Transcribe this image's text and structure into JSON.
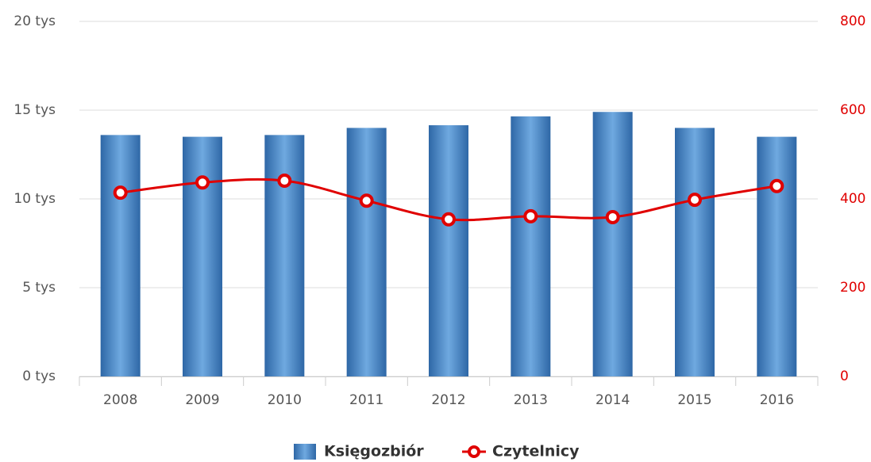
{
  "chart_data": {
    "type": "bar-line",
    "categories": [
      "2008",
      "2009",
      "2010",
      "2011",
      "2012",
      "2013",
      "2014",
      "2015",
      "2016"
    ],
    "series": [
      {
        "name": "Księgozbiór",
        "type": "bar",
        "color": "#3f7cbf",
        "values": [
          13600,
          13500,
          13600,
          14000,
          14150,
          14650,
          14900,
          14000,
          13500
        ]
      },
      {
        "name": "Czytelnicy",
        "type": "line",
        "axis": "y2",
        "color": "#e00000",
        "values": [
          414,
          437,
          441,
          396,
          354,
          361,
          359,
          398,
          429
        ]
      }
    ],
    "ylim": [
      0,
      20000
    ],
    "yticks": [
      {
        "value": 0,
        "label": "0 tys"
      },
      {
        "value": 5000,
        "label": "5 tys"
      },
      {
        "value": 10000,
        "label": "10 tys"
      },
      {
        "value": 15000,
        "label": "15 tys"
      },
      {
        "value": 20000,
        "label": "20 tys"
      }
    ],
    "y2lim": [
      0,
      800
    ],
    "y2ticks": [
      0,
      200,
      400,
      600,
      800
    ],
    "grid": true,
    "legend": "bottom"
  }
}
